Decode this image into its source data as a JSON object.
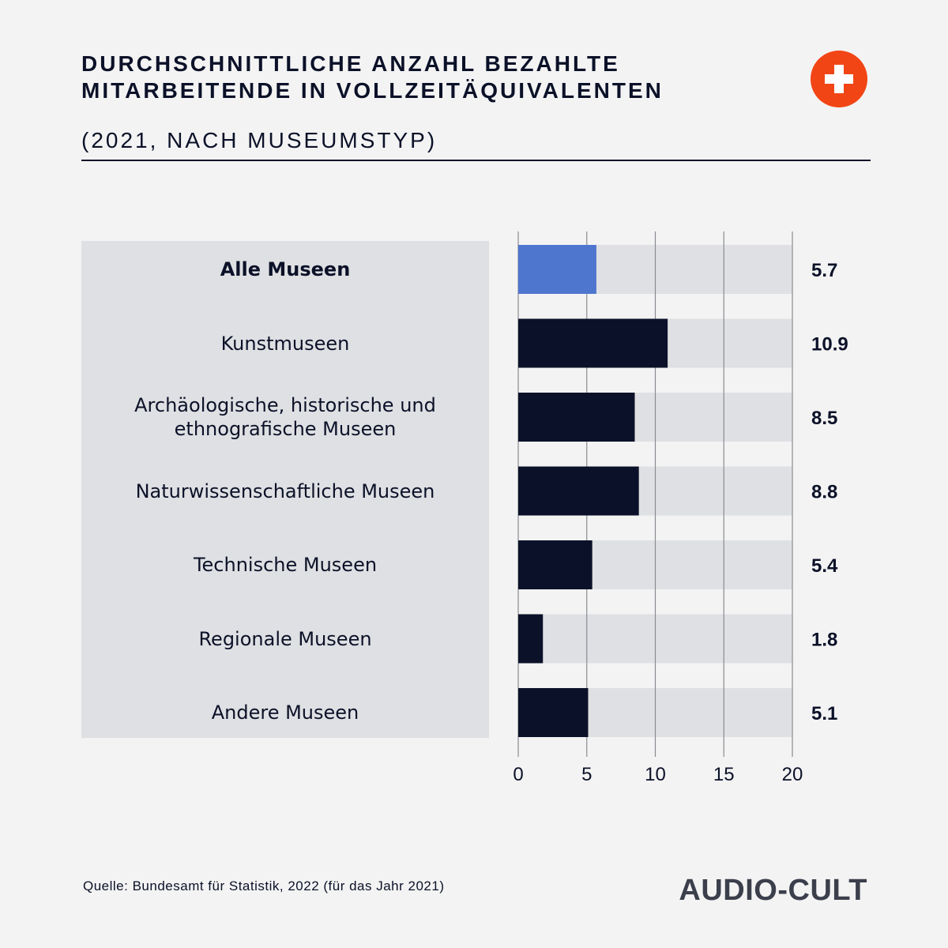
{
  "header": {
    "title": "DURCHSCHNITTLICHE ANZAHL BEZAHLTE MITARBEITENDE IN VOLLZEITÄQUIVALENTEN",
    "subtitle": "(2021, NACH MUSEUMSTYP)"
  },
  "flag_icon": "swiss-flag-icon",
  "colors": {
    "highlight": "#4f76cf",
    "bar": "#0b1128",
    "track": "#dfe0e3",
    "flag": "#f24515"
  },
  "chart_data": {
    "type": "bar",
    "orientation": "horizontal",
    "categories": [
      "Alle Museen",
      "Kunstmuseen",
      "Archäologische, historische und ethnografische Museen",
      "Naturwissenschaftliche Museen",
      "Technische Museen",
      "Regionale Museen",
      "Andere Museen"
    ],
    "values": [
      5.7,
      10.9,
      8.5,
      8.8,
      5.4,
      1.8,
      5.1
    ],
    "value_labels": [
      "5.7",
      "10.9",
      "8.5",
      "8.8",
      "5.4",
      "1.8",
      "5.1"
    ],
    "highlight_index": 0,
    "xlim": [
      0,
      20
    ],
    "xticks": [
      0,
      5,
      10,
      15,
      20
    ],
    "grid": true
  },
  "footer": {
    "source": "Quelle:  Bundesamt für Statistik, 2022 (für das Jahr 2021)",
    "brand": "AUDIO-CULT"
  }
}
